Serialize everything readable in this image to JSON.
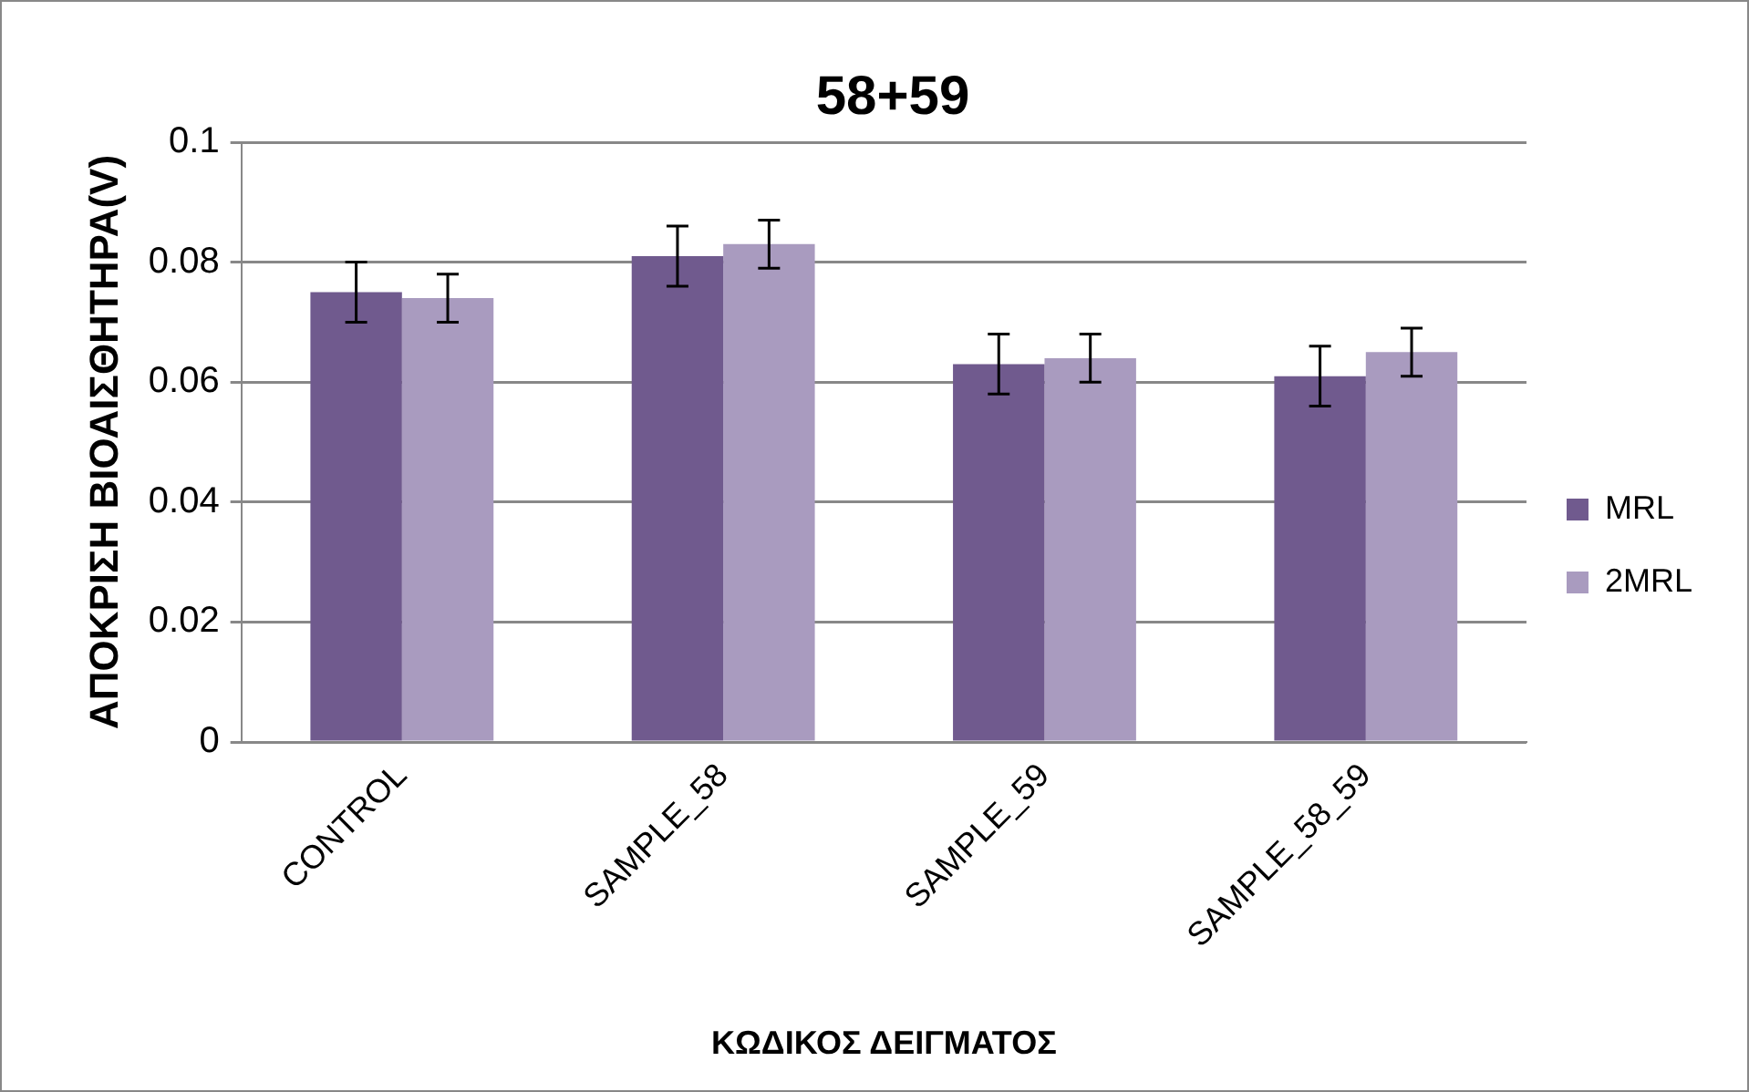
{
  "chart_data": {
    "type": "bar",
    "title": "58+59",
    "xlabel": "ΚΩΔΙΚΟΣ ΔΕΙΓΜΑΤΟΣ",
    "ylabel": "ΑΠΟΚΡΙΣΗ ΒΙΟΑΙΣΘΗΤΗΡΑ(V)",
    "categories": [
      "CONTROL",
      "SAMPLE_58",
      "SAMPLE_59",
      "SAMPLE_58_59"
    ],
    "series": [
      {
        "name": "MRL",
        "color": "#705a8e",
        "values": [
          0.075,
          0.081,
          0.063,
          0.061
        ],
        "errors": [
          0.005,
          0.005,
          0.005,
          0.005
        ]
      },
      {
        "name": "2MRL",
        "color": "#a99bbf",
        "values": [
          0.074,
          0.083,
          0.064,
          0.065
        ],
        "errors": [
          0.004,
          0.004,
          0.004,
          0.004
        ]
      }
    ],
    "ylim": [
      0,
      0.1
    ],
    "yticks": [
      0,
      0.02,
      0.04,
      0.06,
      0.08,
      0.1
    ],
    "grid": "y",
    "legend": "right"
  }
}
